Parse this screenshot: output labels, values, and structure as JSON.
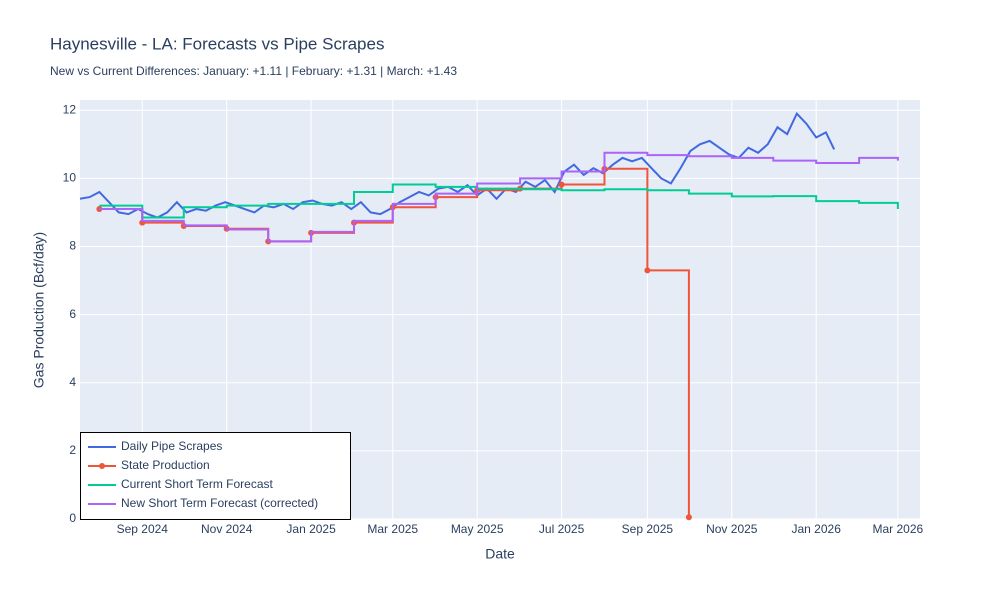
{
  "chart_data": {
    "type": "line",
    "title": "Haynesville - LA: Forecasts vs Pipe Scrapes",
    "subtitle": "New vs Current Differences: January: +1.11 | February: +1.31 | March: +1.43",
    "x_label": "Date",
    "y_label": "Gas Production (Bcf/day)",
    "xlim": [
      "2024-07-18",
      "2026-03-17"
    ],
    "ylim": [
      0,
      12.3
    ],
    "xticks": [
      {
        "value": "2024-09",
        "label": "Sep 2024"
      },
      {
        "value": "2024-11",
        "label": "Nov 2024"
      },
      {
        "value": "2025-01",
        "label": "Jan 2025"
      },
      {
        "value": "2025-03",
        "label": "Mar 2025"
      },
      {
        "value": "2025-05",
        "label": "May 2025"
      },
      {
        "value": "2025-07",
        "label": "Jul 2025"
      },
      {
        "value": "2025-09",
        "label": "Sep 2025"
      },
      {
        "value": "2025-11",
        "label": "Nov 2025"
      },
      {
        "value": "2026-01",
        "label": "Jan 2026"
      },
      {
        "value": "2026-03",
        "label": "Mar 2026"
      }
    ],
    "yticks": [
      0,
      2,
      4,
      6,
      8,
      10,
      12
    ],
    "grid": true,
    "legend": "bottom left",
    "series": [
      {
        "name": "Daily Pipe Scrapes",
        "color": "#4169E1",
        "line_shape": "linear",
        "markers": false,
        "x": [
          "2024-07-18",
          "2024-07-25",
          "2024-08-01",
          "2024-08-08",
          "2024-08-15",
          "2024-08-22",
          "2024-08-29",
          "2024-09-05",
          "2024-09-12",
          "2024-09-19",
          "2024-09-26",
          "2024-10-03",
          "2024-10-10",
          "2024-10-17",
          "2024-10-24",
          "2024-10-31",
          "2024-11-07",
          "2024-11-14",
          "2024-11-21",
          "2024-11-28",
          "2024-12-05",
          "2024-12-12",
          "2024-12-19",
          "2024-12-26",
          "2025-01-02",
          "2025-01-09",
          "2025-01-16",
          "2025-01-23",
          "2025-01-30",
          "2025-02-06",
          "2025-02-13",
          "2025-02-20",
          "2025-02-27",
          "2025-03-06",
          "2025-03-13",
          "2025-03-20",
          "2025-03-27",
          "2025-04-03",
          "2025-04-10",
          "2025-04-17",
          "2025-04-24",
          "2025-05-01",
          "2025-05-08",
          "2025-05-15",
          "2025-05-22",
          "2025-05-29",
          "2025-06-05",
          "2025-06-12",
          "2025-06-19",
          "2025-06-26",
          "2025-07-03",
          "2025-07-10",
          "2025-07-17",
          "2025-07-24",
          "2025-07-31",
          "2025-08-07",
          "2025-08-14",
          "2025-08-21",
          "2025-08-28",
          "2025-09-04",
          "2025-09-11",
          "2025-09-18",
          "2025-09-25",
          "2025-10-02",
          "2025-10-09",
          "2025-10-16",
          "2025-10-23",
          "2025-10-30",
          "2025-11-06",
          "2025-11-13",
          "2025-11-20",
          "2025-11-27",
          "2025-12-04",
          "2025-12-11",
          "2025-12-18",
          "2025-12-25",
          "2026-01-01",
          "2026-01-08",
          "2026-01-14"
        ],
        "values": [
          9.4,
          9.45,
          9.6,
          9.3,
          9.0,
          8.95,
          9.1,
          8.95,
          8.85,
          9.0,
          9.3,
          9.0,
          9.1,
          9.05,
          9.2,
          9.3,
          9.2,
          9.1,
          9.0,
          9.2,
          9.15,
          9.25,
          9.1,
          9.3,
          9.35,
          9.25,
          9.2,
          9.3,
          9.1,
          9.3,
          9.0,
          8.95,
          9.1,
          9.3,
          9.45,
          9.6,
          9.5,
          9.7,
          9.75,
          9.6,
          9.8,
          9.5,
          9.7,
          9.4,
          9.7,
          9.6,
          9.9,
          9.75,
          9.95,
          9.6,
          10.2,
          10.4,
          10.1,
          10.3,
          10.15,
          10.4,
          10.6,
          10.5,
          10.6,
          10.3,
          10.0,
          9.85,
          10.3,
          10.8,
          11.0,
          11.1,
          10.9,
          10.7,
          10.6,
          10.9,
          10.75,
          11.0,
          11.5,
          11.3,
          11.9,
          11.6,
          11.2,
          11.35,
          10.85
        ]
      },
      {
        "name": "State Production",
        "color": "#EF553B",
        "line_shape": "hv",
        "markers": true,
        "x": [
          "2024-08",
          "2024-09",
          "2024-10",
          "2024-11",
          "2024-12",
          "2025-01",
          "2025-02",
          "2025-03",
          "2025-04",
          "2025-05",
          "2025-06",
          "2025-07",
          "2025-08",
          "2025-09",
          "2025-10"
        ],
        "values": [
          9.1,
          8.7,
          8.6,
          8.52,
          8.15,
          8.4,
          8.7,
          9.15,
          9.45,
          9.65,
          9.7,
          9.82,
          10.28,
          7.3,
          0.05
        ]
      },
      {
        "name": "Current Short Term Forecast",
        "color": "#00CC96",
        "line_shape": "hv",
        "markers": false,
        "x": [
          "2024-08",
          "2024-09",
          "2024-10",
          "2024-11",
          "2024-12",
          "2025-01",
          "2025-02",
          "2025-03",
          "2025-04",
          "2025-05",
          "2025-06",
          "2025-07",
          "2025-08",
          "2025-09",
          "2025-10",
          "2025-11",
          "2025-12",
          "2026-01",
          "2026-02",
          "2026-03"
        ],
        "values": [
          9.2,
          8.85,
          9.15,
          9.2,
          9.25,
          9.25,
          9.6,
          9.82,
          9.75,
          9.7,
          9.68,
          9.65,
          9.68,
          9.65,
          9.55,
          9.47,
          9.48,
          9.33,
          9.28,
          9.1
        ]
      },
      {
        "name": "New Short Term Forecast (corrected)",
        "color": "#AB63FA",
        "line_shape": "hv",
        "markers": false,
        "x": [
          "2024-08",
          "2024-09",
          "2024-10",
          "2024-11",
          "2024-12",
          "2025-01",
          "2025-02",
          "2025-03",
          "2025-04",
          "2025-05",
          "2025-06",
          "2025-07",
          "2025-08",
          "2025-09",
          "2025-10",
          "2025-11",
          "2025-12",
          "2026-01",
          "2026-02",
          "2026-03"
        ],
        "values": [
          9.1,
          8.75,
          8.62,
          8.5,
          8.15,
          8.43,
          8.75,
          9.25,
          9.55,
          9.85,
          10.0,
          10.2,
          10.75,
          10.68,
          10.65,
          10.6,
          10.52,
          10.45,
          10.6,
          10.52
        ]
      }
    ]
  }
}
